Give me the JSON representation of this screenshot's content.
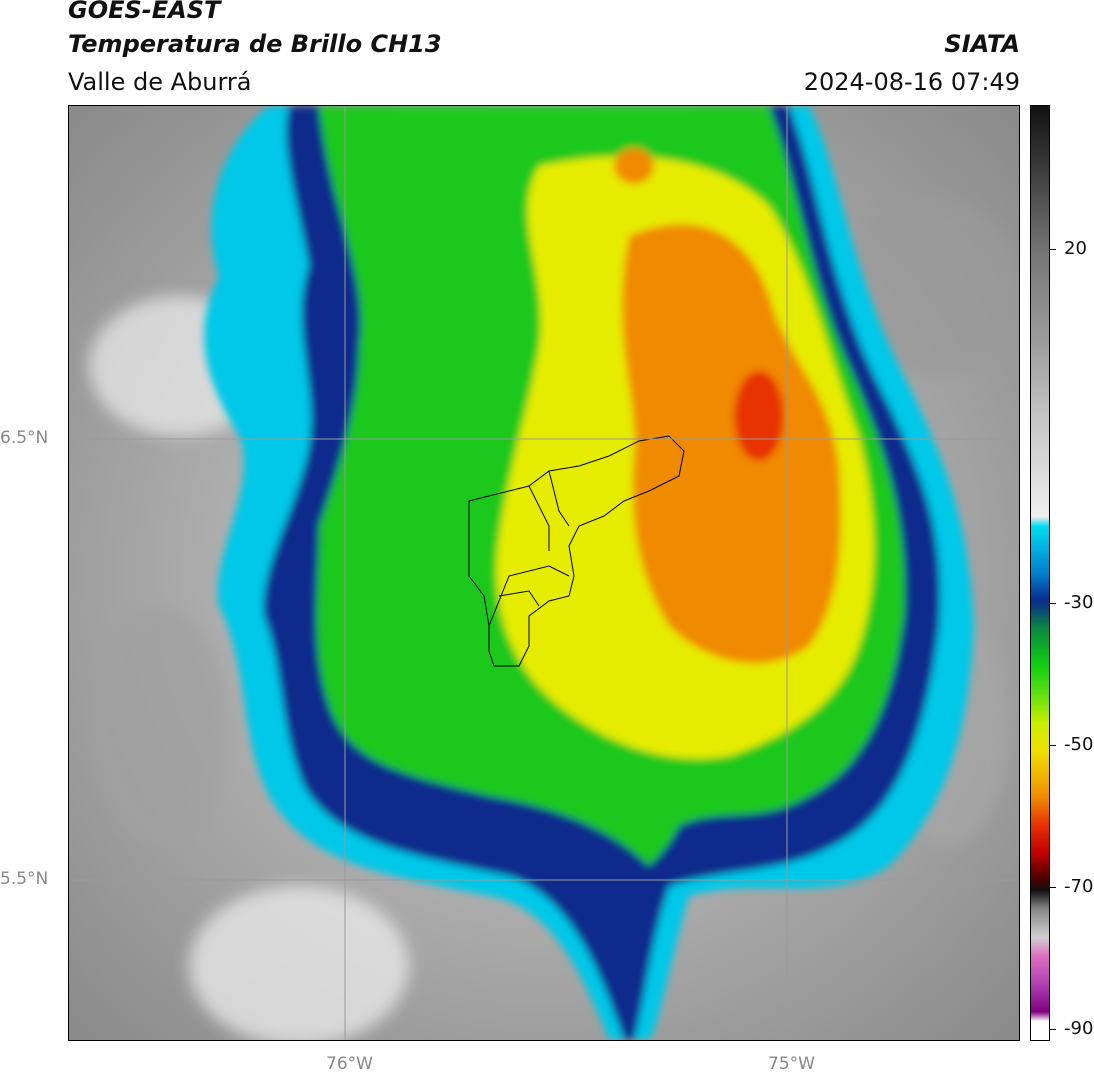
{
  "header": {
    "satellite": "GOES-EAST",
    "product": "Temperatura de Brillo CH13",
    "organization": "SIATA",
    "region": "Valle de Aburrá",
    "timestamp": "2024-08-16 07:49"
  },
  "axes": {
    "lat_labels": [
      "6.5°N",
      "5.5°N"
    ],
    "lon_labels": [
      "76°W",
      "75°W"
    ]
  },
  "colorbar": {
    "tick_labels": [
      "20",
      "-30",
      "-50",
      "-70",
      "-90"
    ]
  },
  "colors": {
    "warm_gray": "#8c8c8c",
    "cyan": "#00c8e8",
    "dark_blue": "#0a2a8c",
    "green": "#1ec81e",
    "yellow": "#f0e000",
    "orange": "#f08a00",
    "red": "#e83000",
    "magenta": "#c040c0"
  }
}
